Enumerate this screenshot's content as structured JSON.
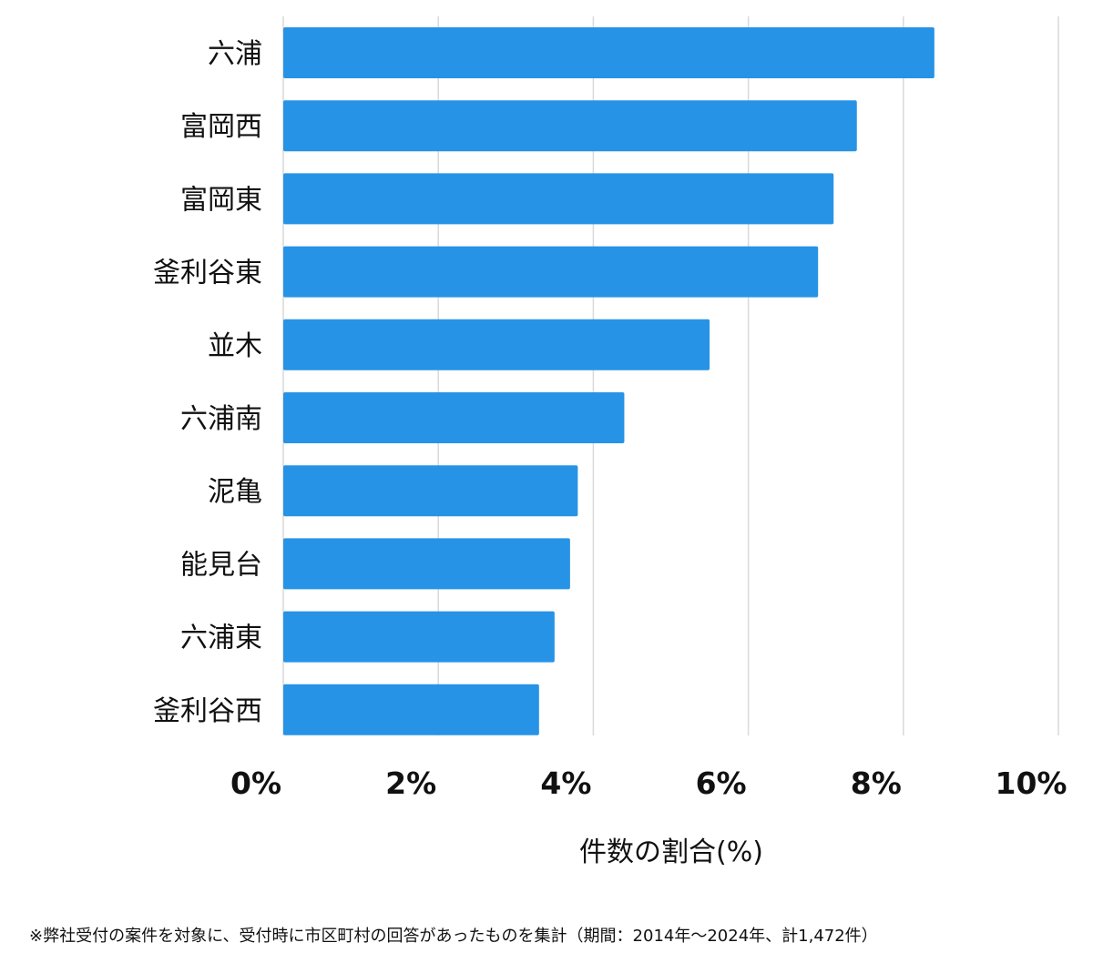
{
  "chart_data": {
    "type": "bar",
    "orientation": "horizontal",
    "categories": [
      "六浦",
      "富岡西",
      "富岡東",
      "釜利谷東",
      "並木",
      "六浦南",
      "泥亀",
      "能見台",
      "六浦東",
      "釜利谷西"
    ],
    "values": [
      8.4,
      7.4,
      7.1,
      6.9,
      5.5,
      4.4,
      3.8,
      3.7,
      3.5,
      3.3
    ],
    "xlim": [
      0,
      10
    ],
    "xticks": [
      "0%",
      "2%",
      "4%",
      "6%",
      "8%",
      "10%"
    ],
    "xlabel": "件数の割合(%)",
    "ylabel": "",
    "title": "",
    "grid": true,
    "bar_color": "#2793e6",
    "grid_color": "#d9d9d9"
  },
  "footnote": "※弊社受付の案件を対象に、受付時に市区町村の回答があったものを集計（期間：2014年～2024年、計1,472件）"
}
